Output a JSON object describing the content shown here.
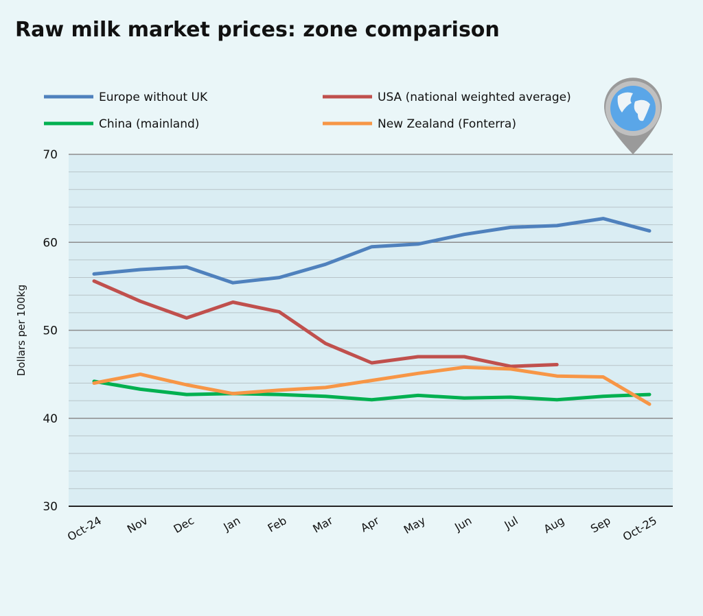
{
  "chart_data": {
    "type": "line",
    "title": "Raw milk market prices: zone comparison",
    "xlabel": "",
    "ylabel": "Dollars per 100kg",
    "ylim": [
      30,
      70
    ],
    "yticks": [
      30,
      40,
      50,
      60,
      70
    ],
    "minor_grid_step": 2,
    "grid": true,
    "legend_placement": "top",
    "categories": [
      "Oct-24",
      "Nov",
      "Dec",
      "Jan",
      "Feb",
      "Mar",
      "Apr",
      "May",
      "Jun",
      "Jul",
      "Aug",
      "Sep",
      "Oct-25"
    ],
    "series": [
      {
        "name": "Europe without UK",
        "color": "#4f81bd",
        "values": [
          56.4,
          56.9,
          57.2,
          55.4,
          56.0,
          57.5,
          59.5,
          59.8,
          60.9,
          61.7,
          61.9,
          62.7,
          61.3
        ]
      },
      {
        "name": "USA (national weighted average)",
        "color": "#c0504d",
        "values": [
          55.6,
          53.3,
          51.4,
          53.2,
          52.1,
          48.5,
          46.3,
          47.0,
          47.0,
          45.9,
          46.1,
          null,
          null
        ]
      },
      {
        "name": "China (mainland)",
        "color": "#00b050",
        "values": [
          44.2,
          43.3,
          42.7,
          42.8,
          42.7,
          42.5,
          42.1,
          42.6,
          42.3,
          42.4,
          42.1,
          42.5,
          42.7
        ]
      },
      {
        "name": "New Zealand (Fonterra)",
        "color": "#f79646",
        "values": [
          44.0,
          45.0,
          43.8,
          42.8,
          43.2,
          43.5,
          44.3,
          45.1,
          45.8,
          45.6,
          44.8,
          44.7,
          41.6
        ]
      }
    ],
    "plot_background": "#daedf3",
    "icon": "globe-pin-icon"
  }
}
